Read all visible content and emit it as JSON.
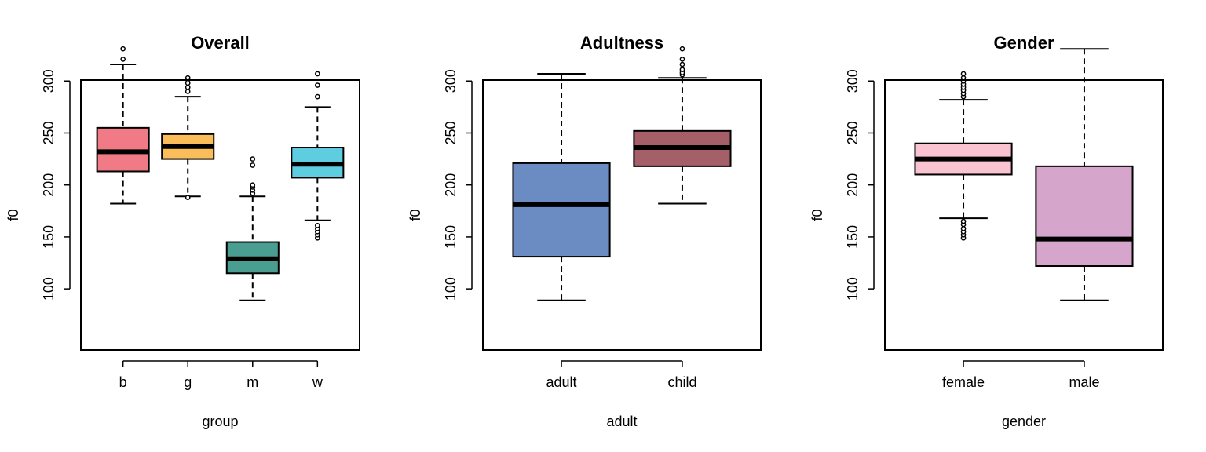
{
  "chart_data": [
    {
      "type": "boxplot",
      "title": "Overall",
      "xlabel": "group",
      "ylabel": "f0",
      "ylim": [
        80,
        340
      ],
      "yticks": [
        100,
        150,
        200,
        250,
        300
      ],
      "categories": [
        "b",
        "g",
        "m",
        "w"
      ],
      "boxes": [
        {
          "name": "b",
          "color": "#f07b87",
          "whisker_low": 182,
          "q1": 213,
          "median": 232,
          "q3": 255,
          "whisker_high": 316,
          "outliers": [
            321,
            331
          ]
        },
        {
          "name": "g",
          "color": "#fbbd59",
          "whisker_low": 189,
          "q1": 225,
          "median": 237,
          "q3": 249,
          "whisker_high": 285,
          "outliers": [
            188,
            290,
            294,
            298,
            301,
            303
          ]
        },
        {
          "name": "m",
          "color": "#4a9e91",
          "whisker_low": 89,
          "q1": 115,
          "median": 129,
          "q3": 145,
          "whisker_high": 189,
          "outliers": [
            192,
            195,
            198,
            200,
            219,
            225
          ]
        },
        {
          "name": "w",
          "color": "#5fcde0",
          "whisker_low": 166,
          "q1": 207,
          "median": 220,
          "q3": 236,
          "whisker_high": 275,
          "outliers": [
            149,
            152,
            155,
            158,
            161,
            285,
            296,
            307
          ]
        }
      ]
    },
    {
      "type": "boxplot",
      "title": "Adultness",
      "xlabel": "adult",
      "ylabel": "f0",
      "ylim": [
        80,
        340
      ],
      "yticks": [
        100,
        150,
        200,
        250,
        300
      ],
      "categories": [
        "adult",
        "child"
      ],
      "boxes": [
        {
          "name": "adult",
          "color": "#6b8bc3",
          "whisker_low": 89,
          "q1": 131,
          "median": 181,
          "q3": 221,
          "whisker_high": 307,
          "outliers": []
        },
        {
          "name": "child",
          "color": "#a55f68",
          "whisker_low": 182,
          "q1": 218,
          "median": 236,
          "q3": 252,
          "whisker_high": 303,
          "outliers": [
            306,
            308,
            311,
            316,
            321,
            331
          ]
        }
      ]
    },
    {
      "type": "boxplot",
      "title": "Gender",
      "xlabel": "gender",
      "ylabel": "f0",
      "ylim": [
        80,
        340
      ],
      "yticks": [
        100,
        150,
        200,
        250,
        300
      ],
      "categories": [
        "female",
        "male"
      ],
      "boxes": [
        {
          "name": "female",
          "color": "#f9c3d1",
          "whisker_low": 168,
          "q1": 210,
          "median": 225,
          "q3": 240,
          "whisker_high": 282,
          "outliers": [
            149,
            152,
            155,
            158,
            162,
            165,
            285,
            288,
            291,
            294,
            297,
            300,
            303,
            307
          ]
        },
        {
          "name": "male",
          "color": "#d6a5cb",
          "whisker_low": 89,
          "q1": 122,
          "median": 148,
          "q3": 218,
          "whisker_high": 331,
          "outliers": []
        }
      ]
    }
  ]
}
